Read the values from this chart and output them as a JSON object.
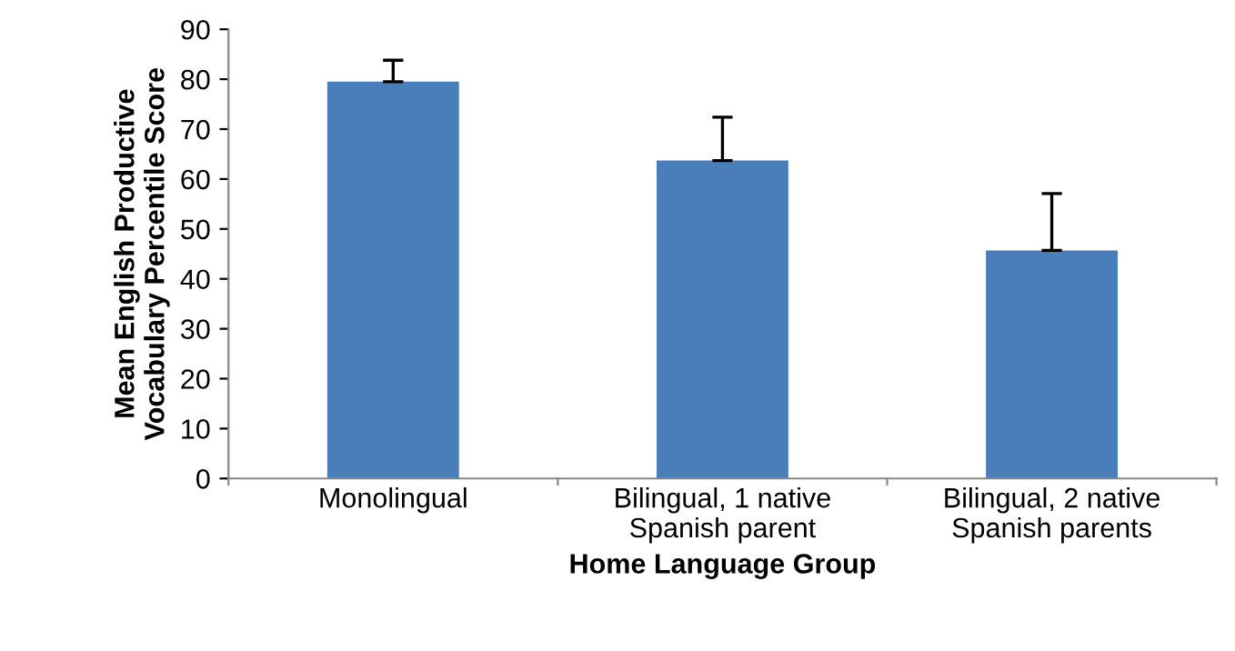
{
  "chart_data": {
    "type": "bar",
    "categories": [
      "Monolingual",
      "Bilingual, 1 native\nSpanish parent",
      "Bilingual, 2 native\nSpanish parents"
    ],
    "values": [
      79.5,
      63.7,
      45.7
    ],
    "errors": [
      [
        79.5,
        83.8
      ],
      [
        63.7,
        72.4
      ],
      [
        45.7,
        57.1
      ]
    ],
    "color": "#4a7ebb",
    "xlabel": "Home Language Group",
    "ylabel": "Mean English Productive\nVocabulary Percentile Score",
    "ylim": [
      0,
      90
    ],
    "yticks": [
      0,
      10,
      20,
      30,
      40,
      50,
      60,
      70,
      80,
      90
    ],
    "grid": false,
    "legend": false
  }
}
